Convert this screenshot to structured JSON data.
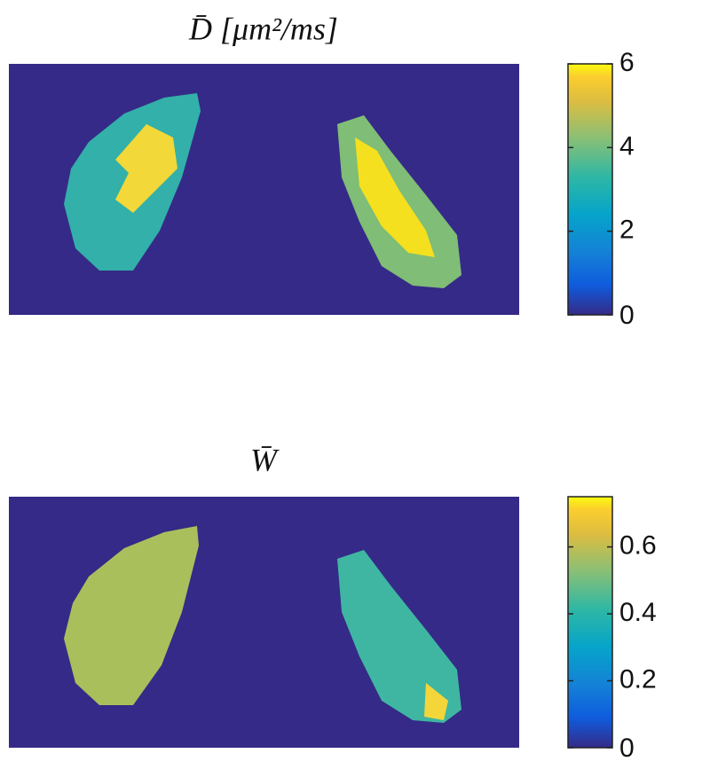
{
  "chart_data": [
    {
      "type": "heatmap",
      "title": "D̄ [μm²/ms]",
      "colorbar": {
        "lim": [
          0,
          6
        ],
        "ticks": [
          0,
          2,
          4,
          6
        ]
      }
    },
    {
      "type": "heatmap",
      "title": "W̄",
      "colorbar": {
        "lim": [
          0,
          0.75
        ],
        "ticks": [
          0,
          0.2,
          0.4,
          0.6
        ]
      }
    }
  ]
}
